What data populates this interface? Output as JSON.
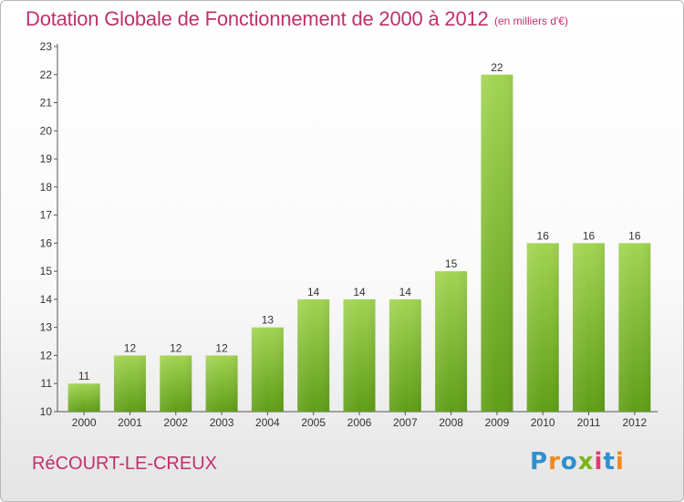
{
  "header": {
    "title": "Dotation Globale de Fonctionnement de 2000 à 2012",
    "subtitle": "(en milliers d'€)"
  },
  "footer": {
    "commune": "RéCOURT-LE-CREUX",
    "logo_letters": [
      "P",
      "r",
      "o",
      "x",
      "i",
      "t",
      "i"
    ]
  },
  "chart_data": {
    "type": "bar",
    "title": "Dotation Globale de Fonctionnement de 2000 à 2012",
    "subtitle": "(en milliers d'€)",
    "xlabel": "",
    "ylabel": "",
    "categories": [
      "2000",
      "2001",
      "2002",
      "2003",
      "2004",
      "2005",
      "2006",
      "2007",
      "2008",
      "2009",
      "2010",
      "2011",
      "2012"
    ],
    "values": [
      11,
      12,
      12,
      12,
      13,
      14,
      14,
      14,
      15,
      22,
      16,
      16,
      16
    ],
    "ylim": [
      10,
      23
    ],
    "yticks": [
      10,
      11,
      12,
      13,
      14,
      15,
      16,
      17,
      18,
      19,
      20,
      21,
      22,
      23
    ],
    "grid": false,
    "bar_color_top": "#a2d452",
    "bar_color_bottom": "#5f9e16"
  }
}
